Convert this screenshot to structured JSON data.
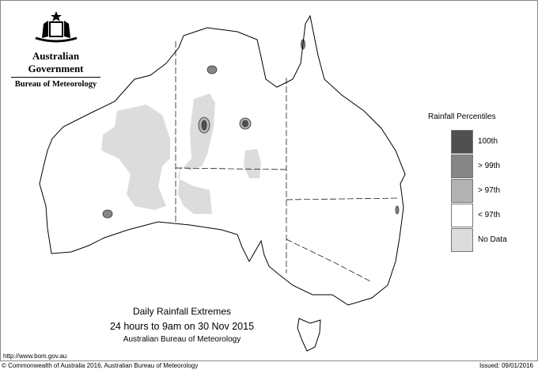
{
  "header": {
    "government": "Australian Government",
    "agency": "Bureau of Meteorology",
    "crest_icon": "coat-of-arms"
  },
  "legend": {
    "title": "Rainfall Percentiles",
    "items": [
      {
        "label": "100th",
        "color": "#505050"
      },
      {
        "label": "> 99th",
        "color": "#868686"
      },
      {
        "label": "> 97th",
        "color": "#b2b2b2"
      },
      {
        "label": "< 97th",
        "color": "#ffffff"
      },
      {
        "label": "No Data",
        "color": "#dcdcdc"
      }
    ]
  },
  "caption": {
    "title": "Daily Rainfall Extremes",
    "period": "24 hours to 9am on 30 Nov 2015",
    "source": "Australian Bureau of Meteorology"
  },
  "footer": {
    "url": "http://www.bom.gov.au",
    "copyright": "© Commonwealth of Australia 2016, Australian Bureau of Meteorology",
    "issued": "Issued: 09/01/2016"
  }
}
